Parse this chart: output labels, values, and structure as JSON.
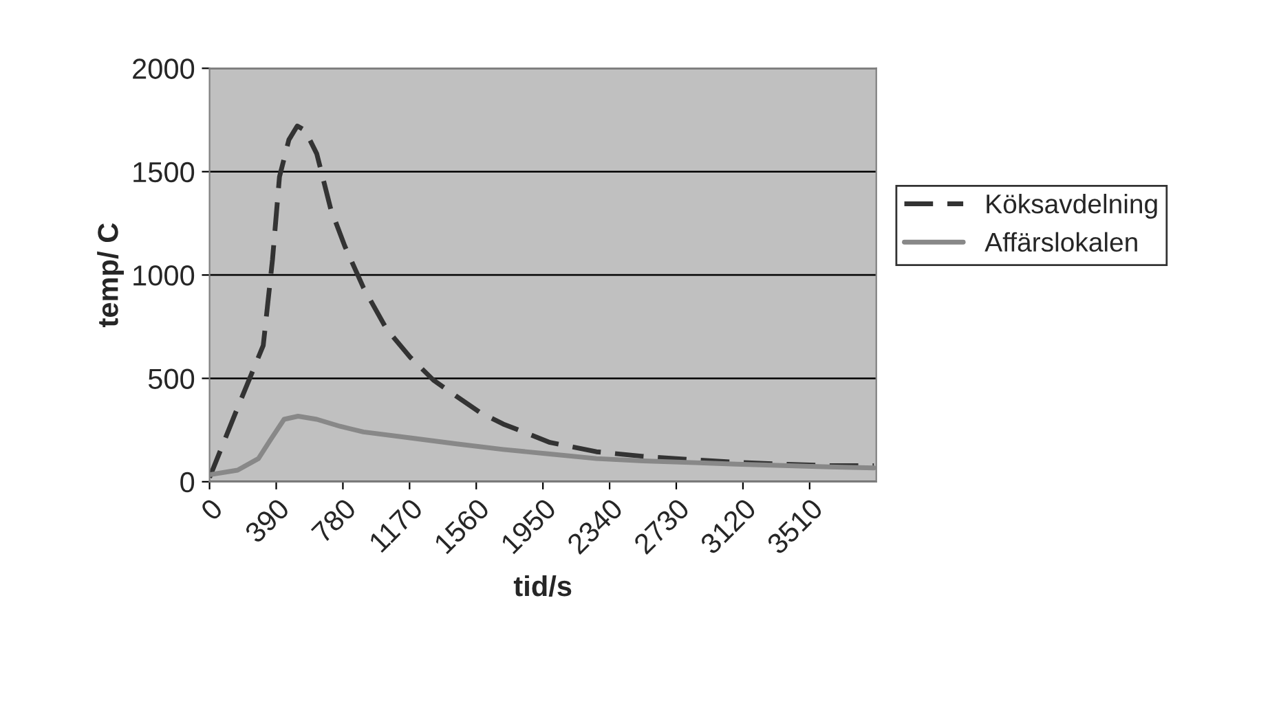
{
  "chart_data": {
    "type": "line",
    "xlabel": "tid/s",
    "ylabel": "temp/ C",
    "xlim": [
      0,
      3900
    ],
    "xticks": [
      0,
      390,
      780,
      1170,
      1560,
      1950,
      2340,
      2730,
      3120,
      3510
    ],
    "ylim": [
      0,
      2000
    ],
    "yticks": [
      0,
      500,
      1000,
      1500,
      2000
    ],
    "grid": "y",
    "legend": "right",
    "marker": "none",
    "series": [
      {
        "name": "Köksavdelning",
        "color": "#333333",
        "line_style": "dashed",
        "x": [
          0,
          164,
          314,
          368,
          409,
          464,
          513,
          559,
          627,
          709,
          791,
          900,
          1036,
          1173,
          1309,
          1445,
          1582,
          1718,
          1855,
          1991,
          2127,
          2263,
          2536,
          2809,
          3082,
          3354,
          3627,
          3886
        ],
        "values": [
          20,
          358,
          659,
          1073,
          1475,
          1654,
          1721,
          1699,
          1587,
          1319,
          1140,
          939,
          738,
          603,
          492,
          413,
          335,
          279,
          235,
          190,
          168,
          145,
          123,
          107,
          94,
          85,
          78,
          78
        ]
      },
      {
        "name": "Affärslokalen",
        "color": "#888888",
        "line_style": "solid",
        "x": [
          0,
          164,
          286,
          355,
          436,
          518,
          627,
          764,
          900,
          1173,
          1445,
          1718,
          1991,
          2263,
          2536,
          3082,
          3627,
          3886
        ],
        "values": [
          34,
          56,
          112,
          201,
          302,
          317,
          302,
          268,
          241,
          212,
          183,
          156,
          134,
          112,
          101,
          85,
          72,
          67
        ]
      }
    ]
  }
}
